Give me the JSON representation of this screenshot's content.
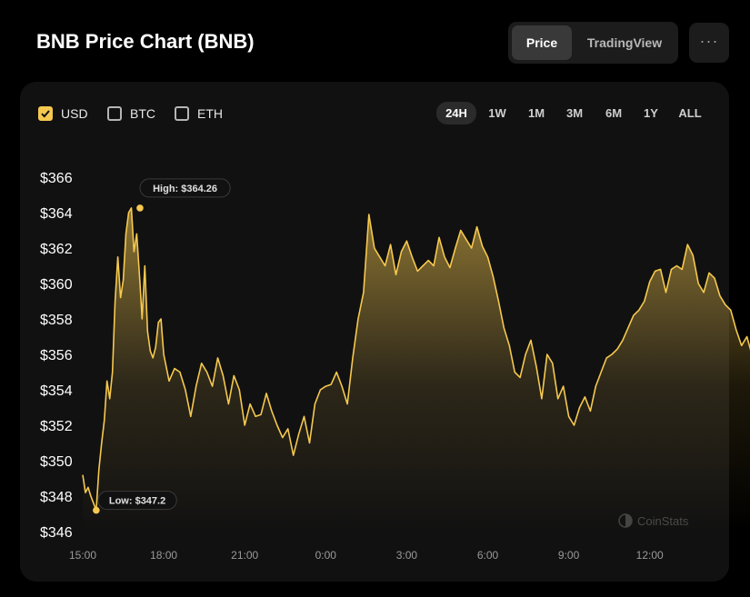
{
  "header": {
    "title": "BNB Price Chart (BNB)"
  },
  "view_toggle": {
    "price_label": "Price",
    "tradingview_label": "TradingView",
    "active": "Price"
  },
  "more_button": {
    "label": "···"
  },
  "currencies": [
    {
      "label": "USD",
      "checked": true
    },
    {
      "label": "BTC",
      "checked": false
    },
    {
      "label": "ETH",
      "checked": false
    }
  ],
  "ranges": [
    {
      "label": "24H",
      "active": true
    },
    {
      "label": "1W",
      "active": false
    },
    {
      "label": "1M",
      "active": false
    },
    {
      "label": "3M",
      "active": false
    },
    {
      "label": "6M",
      "active": false
    },
    {
      "label": "1Y",
      "active": false
    },
    {
      "label": "ALL",
      "active": false
    }
  ],
  "watermark": "CoinStats",
  "colors": {
    "accent": "#f5c84f",
    "background": "#000000",
    "card": "#111111"
  },
  "chart_data": {
    "type": "area",
    "x_unit": "hours",
    "x_tick_values": [
      15,
      18,
      21,
      24,
      27,
      30,
      33,
      36
    ],
    "x_tick_labels": [
      "15:00",
      "18:00",
      "21:00",
      "0:00",
      "3:00",
      "6:00",
      "9:00",
      "12:00"
    ],
    "y_tick_values": [
      346,
      348,
      350,
      352,
      354,
      356,
      358,
      360,
      362,
      364,
      366
    ],
    "y_tick_labels": [
      "$346",
      "$348",
      "$350",
      "$352",
      "$354",
      "$356",
      "$358",
      "$360",
      "$362",
      "$364",
      "$366"
    ],
    "ylim": [
      346,
      366
    ],
    "grid": false,
    "annotations": [
      {
        "label": "High: $364.26",
        "x": 17.12,
        "y": 364.26
      },
      {
        "label": "Low: $347.2",
        "x": 15.5,
        "y": 347.2
      }
    ],
    "series": [
      {
        "x": [
          15.0,
          15.1,
          15.2,
          15.3,
          15.4,
          15.5,
          15.6,
          15.7,
          15.8,
          15.9,
          16.0,
          16.1,
          16.2,
          16.3,
          16.4,
          16.5,
          16.6,
          16.7,
          16.8,
          16.9,
          17.0,
          17.12,
          17.2,
          17.3,
          17.4,
          17.5,
          17.6,
          17.7,
          17.8,
          17.9,
          18.0,
          18.2,
          18.4,
          18.6,
          18.8,
          19.0,
          19.2,
          19.4,
          19.6,
          19.8,
          20.0,
          20.2,
          20.4,
          20.6,
          20.8,
          21.0,
          21.2,
          21.4,
          21.6,
          21.8,
          22.0,
          22.2,
          22.4,
          22.6,
          22.8,
          23.0,
          23.2,
          23.4,
          23.6,
          23.8,
          24.0,
          24.2,
          24.4,
          24.6,
          24.8,
          25.0,
          25.2,
          25.4,
          25.6,
          25.8,
          26.0,
          26.2,
          26.4,
          26.6,
          26.8,
          27.0,
          27.2,
          27.4,
          27.6,
          27.8,
          28.0,
          28.2,
          28.4,
          28.6,
          28.8,
          29.0,
          29.2,
          29.4,
          29.6,
          29.8,
          30.0,
          30.2,
          30.4,
          30.6,
          30.8,
          31.0,
          31.2,
          31.4,
          31.6,
          31.8,
          32.0,
          32.2,
          32.4,
          32.6,
          32.8,
          33.0,
          33.2,
          33.4,
          33.6,
          33.8,
          34.0,
          34.2,
          34.4,
          34.6,
          34.8,
          35.0,
          35.2,
          35.4,
          35.6,
          35.8,
          36.0,
          36.2,
          36.4,
          36.6,
          36.8,
          37.0,
          37.2,
          37.4,
          37.6,
          37.8,
          38.0,
          38.2,
          38.4,
          38.6,
          38.8,
          39.0,
          39.2,
          39.4,
          39.6,
          39.8,
          40.0,
          40.2,
          40.4
        ],
        "values": [
          349.2,
          348.2,
          348.5,
          348.0,
          347.6,
          347.2,
          349.5,
          351.0,
          352.3,
          354.5,
          353.5,
          355.0,
          359.0,
          361.5,
          359.2,
          360.2,
          362.8,
          364.0,
          364.26,
          361.8,
          362.8,
          360.0,
          358.0,
          361.0,
          357.3,
          356.2,
          355.8,
          356.4,
          357.8,
          358.0,
          356.0,
          354.5,
          355.2,
          355.0,
          354.0,
          352.5,
          354.2,
          355.5,
          355.0,
          354.2,
          355.8,
          354.8,
          353.2,
          354.8,
          354.0,
          352.0,
          353.2,
          352.5,
          352.6,
          353.8,
          352.8,
          352.0,
          351.3,
          351.8,
          350.3,
          351.5,
          352.5,
          351.0,
          353.2,
          354.0,
          354.2,
          354.3,
          355.0,
          354.2,
          353.2,
          355.8,
          358.0,
          359.5,
          363.9,
          362.0,
          361.5,
          361.0,
          362.2,
          360.5,
          361.8,
          362.4,
          361.5,
          360.7,
          361.0,
          361.3,
          361.0,
          362.6,
          361.5,
          360.9,
          362.0,
          363.0,
          362.5,
          362.0,
          363.2,
          362.1,
          361.5,
          360.4,
          359.0,
          357.5,
          356.5,
          355.0,
          354.7,
          356.0,
          356.8,
          355.3,
          353.5,
          356.0,
          355.5,
          353.5,
          354.2,
          352.5,
          352.0,
          353.0,
          353.6,
          352.8,
          354.2,
          355.0,
          355.8,
          356.0,
          356.3,
          356.8,
          357.5,
          358.2,
          358.5,
          359.0,
          360.1,
          360.7,
          360.8,
          359.5,
          360.8,
          361.0,
          360.8,
          362.2,
          361.6,
          360.0,
          359.5,
          360.6,
          360.3,
          359.3,
          358.8,
          358.5,
          357.4,
          356.5,
          357.0,
          355.9,
          356.2,
          355.7,
          357.6
        ]
      }
    ]
  }
}
